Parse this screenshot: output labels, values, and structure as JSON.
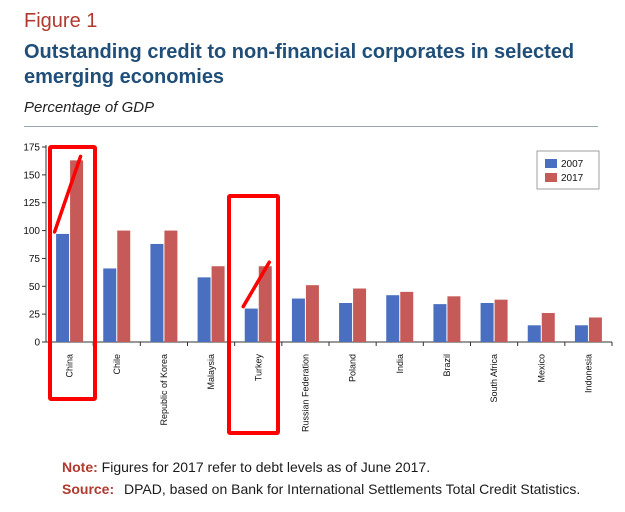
{
  "figure_label": "Figure 1",
  "title": "Outstanding credit to non-financial corporates in selected emerging economies",
  "subtitle": "Percentage of GDP",
  "note": {
    "label": "Note:",
    "text": "Figures for 2017 refer to debt levels as of June 2017."
  },
  "source": {
    "label": "Source:",
    "text": "DPAD, based on Bank for International Settlements Total Credit Statistics."
  },
  "colors": {
    "series_2007": "#4a6fc1",
    "series_2017": "#c65a58",
    "annotation": "#ff0000"
  },
  "chart_data": {
    "type": "bar",
    "categories": [
      "China",
      "Chile",
      "Republic of Korea",
      "Malaysia",
      "Turkey",
      "Russian Federation",
      "Poland",
      "India",
      "Brazil",
      "South Africa",
      "Mexico",
      "Indonesia"
    ],
    "series": [
      {
        "name": "2007",
        "values": [
          97,
          66,
          88,
          58,
          30,
          39,
          35,
          42,
          34,
          35,
          15,
          15
        ]
      },
      {
        "name": "2017",
        "values": [
          163,
          100,
          100,
          68,
          68,
          51,
          48,
          45,
          41,
          38,
          26,
          22
        ]
      }
    ],
    "yticks": [
      0,
      25,
      50,
      75,
      100,
      125,
      150,
      175
    ],
    "ylim": [
      0,
      175
    ],
    "grid": false,
    "legend_position": "top-right",
    "annotations": {
      "highlight_boxes": [
        "China",
        "Turkey"
      ],
      "slash_marks": [
        "China",
        "Turkey"
      ]
    }
  }
}
